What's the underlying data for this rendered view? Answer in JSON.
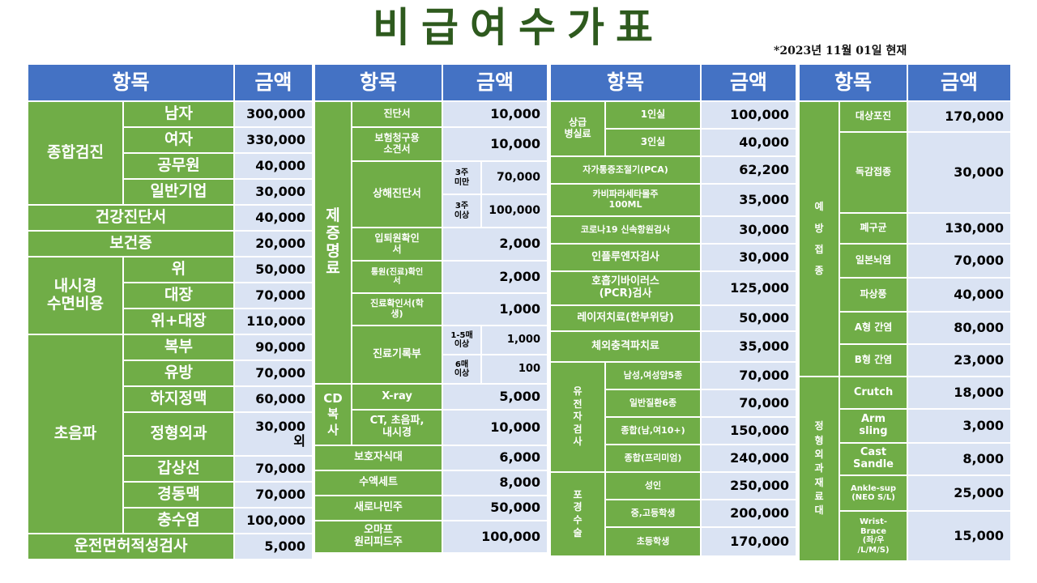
{
  "title": "비급여수가표",
  "date_note": "*2023년 11월 01일 현재",
  "header": {
    "item": "항목",
    "amount": "금액"
  },
  "t1": {
    "health_checkup": {
      "label": "종합검진",
      "rows": [
        {
          "label": "남자",
          "value": "300,000"
        },
        {
          "label": "여자",
          "value": "330,000"
        },
        {
          "label": "공무원",
          "value": "40,000"
        },
        {
          "label": "일반기업",
          "value": "30,000"
        }
      ]
    },
    "health_certificate": {
      "label": "건강진단서",
      "value": "40,000"
    },
    "health_card": {
      "label": "보건증",
      "value": "20,000"
    },
    "endoscopy": {
      "label": "내시경\n수면비용",
      "rows": [
        {
          "label": "위",
          "value": "50,000"
        },
        {
          "label": "대장",
          "value": "70,000"
        },
        {
          "label": "위+대장",
          "value": "110,000"
        }
      ]
    },
    "ultrasound": {
      "label": "초음파",
      "rows": [
        {
          "label": "복부",
          "value": "90,000"
        },
        {
          "label": "유방",
          "value": "70,000"
        },
        {
          "label": "하지정맥",
          "value": "60,000"
        },
        {
          "label": "정형외과",
          "value": "30,000\n외"
        },
        {
          "label": "갑상선",
          "value": "70,000"
        },
        {
          "label": "경동맥",
          "value": "70,000"
        },
        {
          "label": "충수염",
          "value": "100,000"
        }
      ]
    },
    "driver_test": {
      "label": "운전면허적성검사",
      "value": "5,000"
    }
  },
  "t2": {
    "certificates": {
      "label": "제\n증\n명\n료",
      "diagnosis": {
        "label": "진단서",
        "value": "10,000"
      },
      "insurance": {
        "label": "보험청구용\n소견서",
        "value": "10,000"
      },
      "injury": {
        "label": "상해진단서",
        "sub": [
          {
            "label": "3주\n미만",
            "value": "70,000"
          },
          {
            "label": "3주\n이상",
            "value": "100,000"
          }
        ]
      },
      "admission": {
        "label": "입퇴원확인\n서",
        "value": "2,000"
      },
      "visit": {
        "label": "통원(진료)확인\n서",
        "value": "2,000"
      },
      "treatment": {
        "label": "진료확인서(학\n생)",
        "value": "1,000"
      },
      "record": {
        "label": "진료기록부",
        "sub": [
          {
            "label": "1-5매\n이상",
            "value": "1,000"
          },
          {
            "label": "6매\n이상",
            "value": "100"
          }
        ]
      }
    },
    "cd_copy": {
      "label": "CD\n복\n사",
      "rows": [
        {
          "label": "X-ray",
          "value": "5,000"
        },
        {
          "label": "CT, 초음파,\n내시경",
          "value": "10,000"
        }
      ]
    },
    "guardian_meal": {
      "label": "보호자식대",
      "value": "6,000"
    },
    "iv_set": {
      "label": "수액세트",
      "value": "8,000"
    },
    "new_injection": {
      "label": "새로나민주",
      "value": "50,000"
    },
    "omapf": {
      "label": "오마프\n원리피드주",
      "value": "100,000"
    }
  },
  "t3": {
    "room": {
      "label": "상급\n병실료",
      "rows": [
        {
          "label": "1인실",
          "value": "100,000"
        },
        {
          "label": "3인실",
          "value": "40,000"
        }
      ]
    },
    "pca": {
      "label": "자가통증조절기(PCA)",
      "value": "62,200"
    },
    "carbapenem": {
      "label": "카비파라세타몰주\n100ML",
      "value": "35,000"
    },
    "covid": {
      "label": "코로나19 신속항원검사",
      "value": "30,000"
    },
    "flu": {
      "label": "인플루엔자검사",
      "value": "30,000"
    },
    "rsv": {
      "label": "호흡기바이러스\n(PCR)검사",
      "value": "125,000"
    },
    "laser": {
      "label": "레이저치료(한부위당)",
      "value": "50,000"
    },
    "shockwave": {
      "label": "체외충격파치료",
      "value": "35,000"
    },
    "genetic": {
      "label": "유\n전\n자\n검\n사",
      "rows": [
        {
          "label": "남성,여성암5종",
          "value": "70,000"
        },
        {
          "label": "일반질환6종",
          "value": "70,000"
        },
        {
          "label": "종합(남,여10+)",
          "value": "150,000"
        },
        {
          "label": "종합(프리미엄)",
          "value": "240,000"
        }
      ]
    },
    "circumcision": {
      "label": "포\n경\n수\n술",
      "rows": [
        {
          "label": "성인",
          "value": "250,000"
        },
        {
          "label": "중,고등학생",
          "value": "200,000"
        },
        {
          "label": "초등학생",
          "value": "170,000"
        }
      ]
    }
  },
  "t4": {
    "vaccination": {
      "label": "예\n방\n접\n종",
      "rows": [
        {
          "label": "대상포진",
          "value": "170,000"
        },
        {
          "label": "독감접종",
          "value": "30,000"
        },
        {
          "label": "폐구균",
          "value": "130,000"
        },
        {
          "label": "일본뇌염",
          "value": "70,000"
        },
        {
          "label": "파상풍",
          "value": "40,000"
        },
        {
          "label": "A형 간염",
          "value": "80,000"
        },
        {
          "label": "B형 간염",
          "value": "23,000"
        }
      ]
    },
    "orthosis": {
      "label": "정\n형\n외\n과\n재\n료\n대",
      "rows": [
        {
          "label": "Crutch",
          "value": "18,000"
        },
        {
          "label": "Arm\nsling",
          "value": "3,000"
        },
        {
          "label": "Cast\nSandle",
          "value": "8,000"
        },
        {
          "label": "Ankle-sup\n(NEO S/L)",
          "value": "25,000"
        },
        {
          "label": "Wrist-\nBrace\n(좌/우\n/L/M/S)",
          "value": "15,000"
        }
      ]
    }
  },
  "colors": {
    "header_blue": "#4472c4",
    "label_green": "#70ad47",
    "value_blue": "#dae3f3",
    "title_green": "#2e5a1e"
  }
}
